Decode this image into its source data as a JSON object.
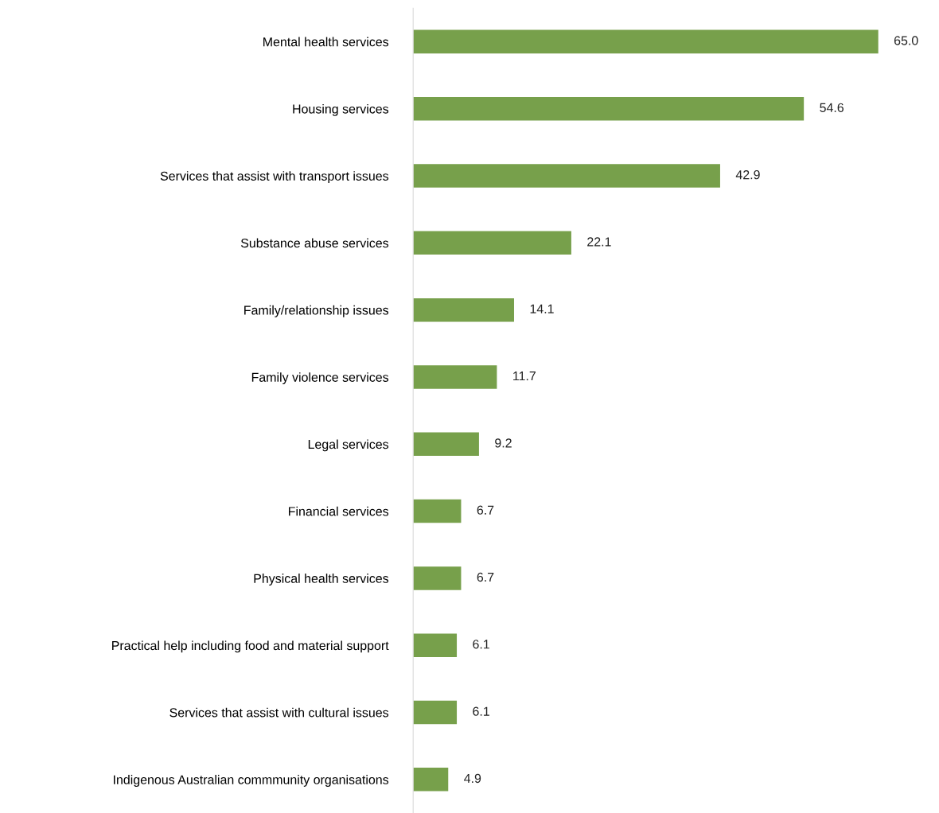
{
  "chart_data": {
    "type": "bar",
    "orientation": "horizontal",
    "categories": [
      "Mental health services",
      "Housing services",
      "Services that assist with transport issues",
      "Substance abuse services",
      "Family/relationship issues",
      "Family violence services",
      "Legal services",
      "Financial services",
      "Physical health services",
      "Practical help including food and material support",
      "Services that assist with cultural issues",
      "Indigenous Australian commmunity organisations"
    ],
    "values": [
      65.0,
      54.6,
      42.9,
      22.1,
      14.1,
      11.7,
      9.2,
      6.7,
      6.7,
      6.1,
      6.1,
      4.9
    ],
    "value_labels": [
      "65.0",
      "54.6",
      "42.9",
      "22.1",
      "14.1",
      "11.7",
      "9.2",
      "6.7",
      "6.7",
      "6.1",
      "6.1",
      "4.9"
    ],
    "color": "#77a04b",
    "grid": false,
    "legend": false,
    "tick_labels": "y"
  }
}
